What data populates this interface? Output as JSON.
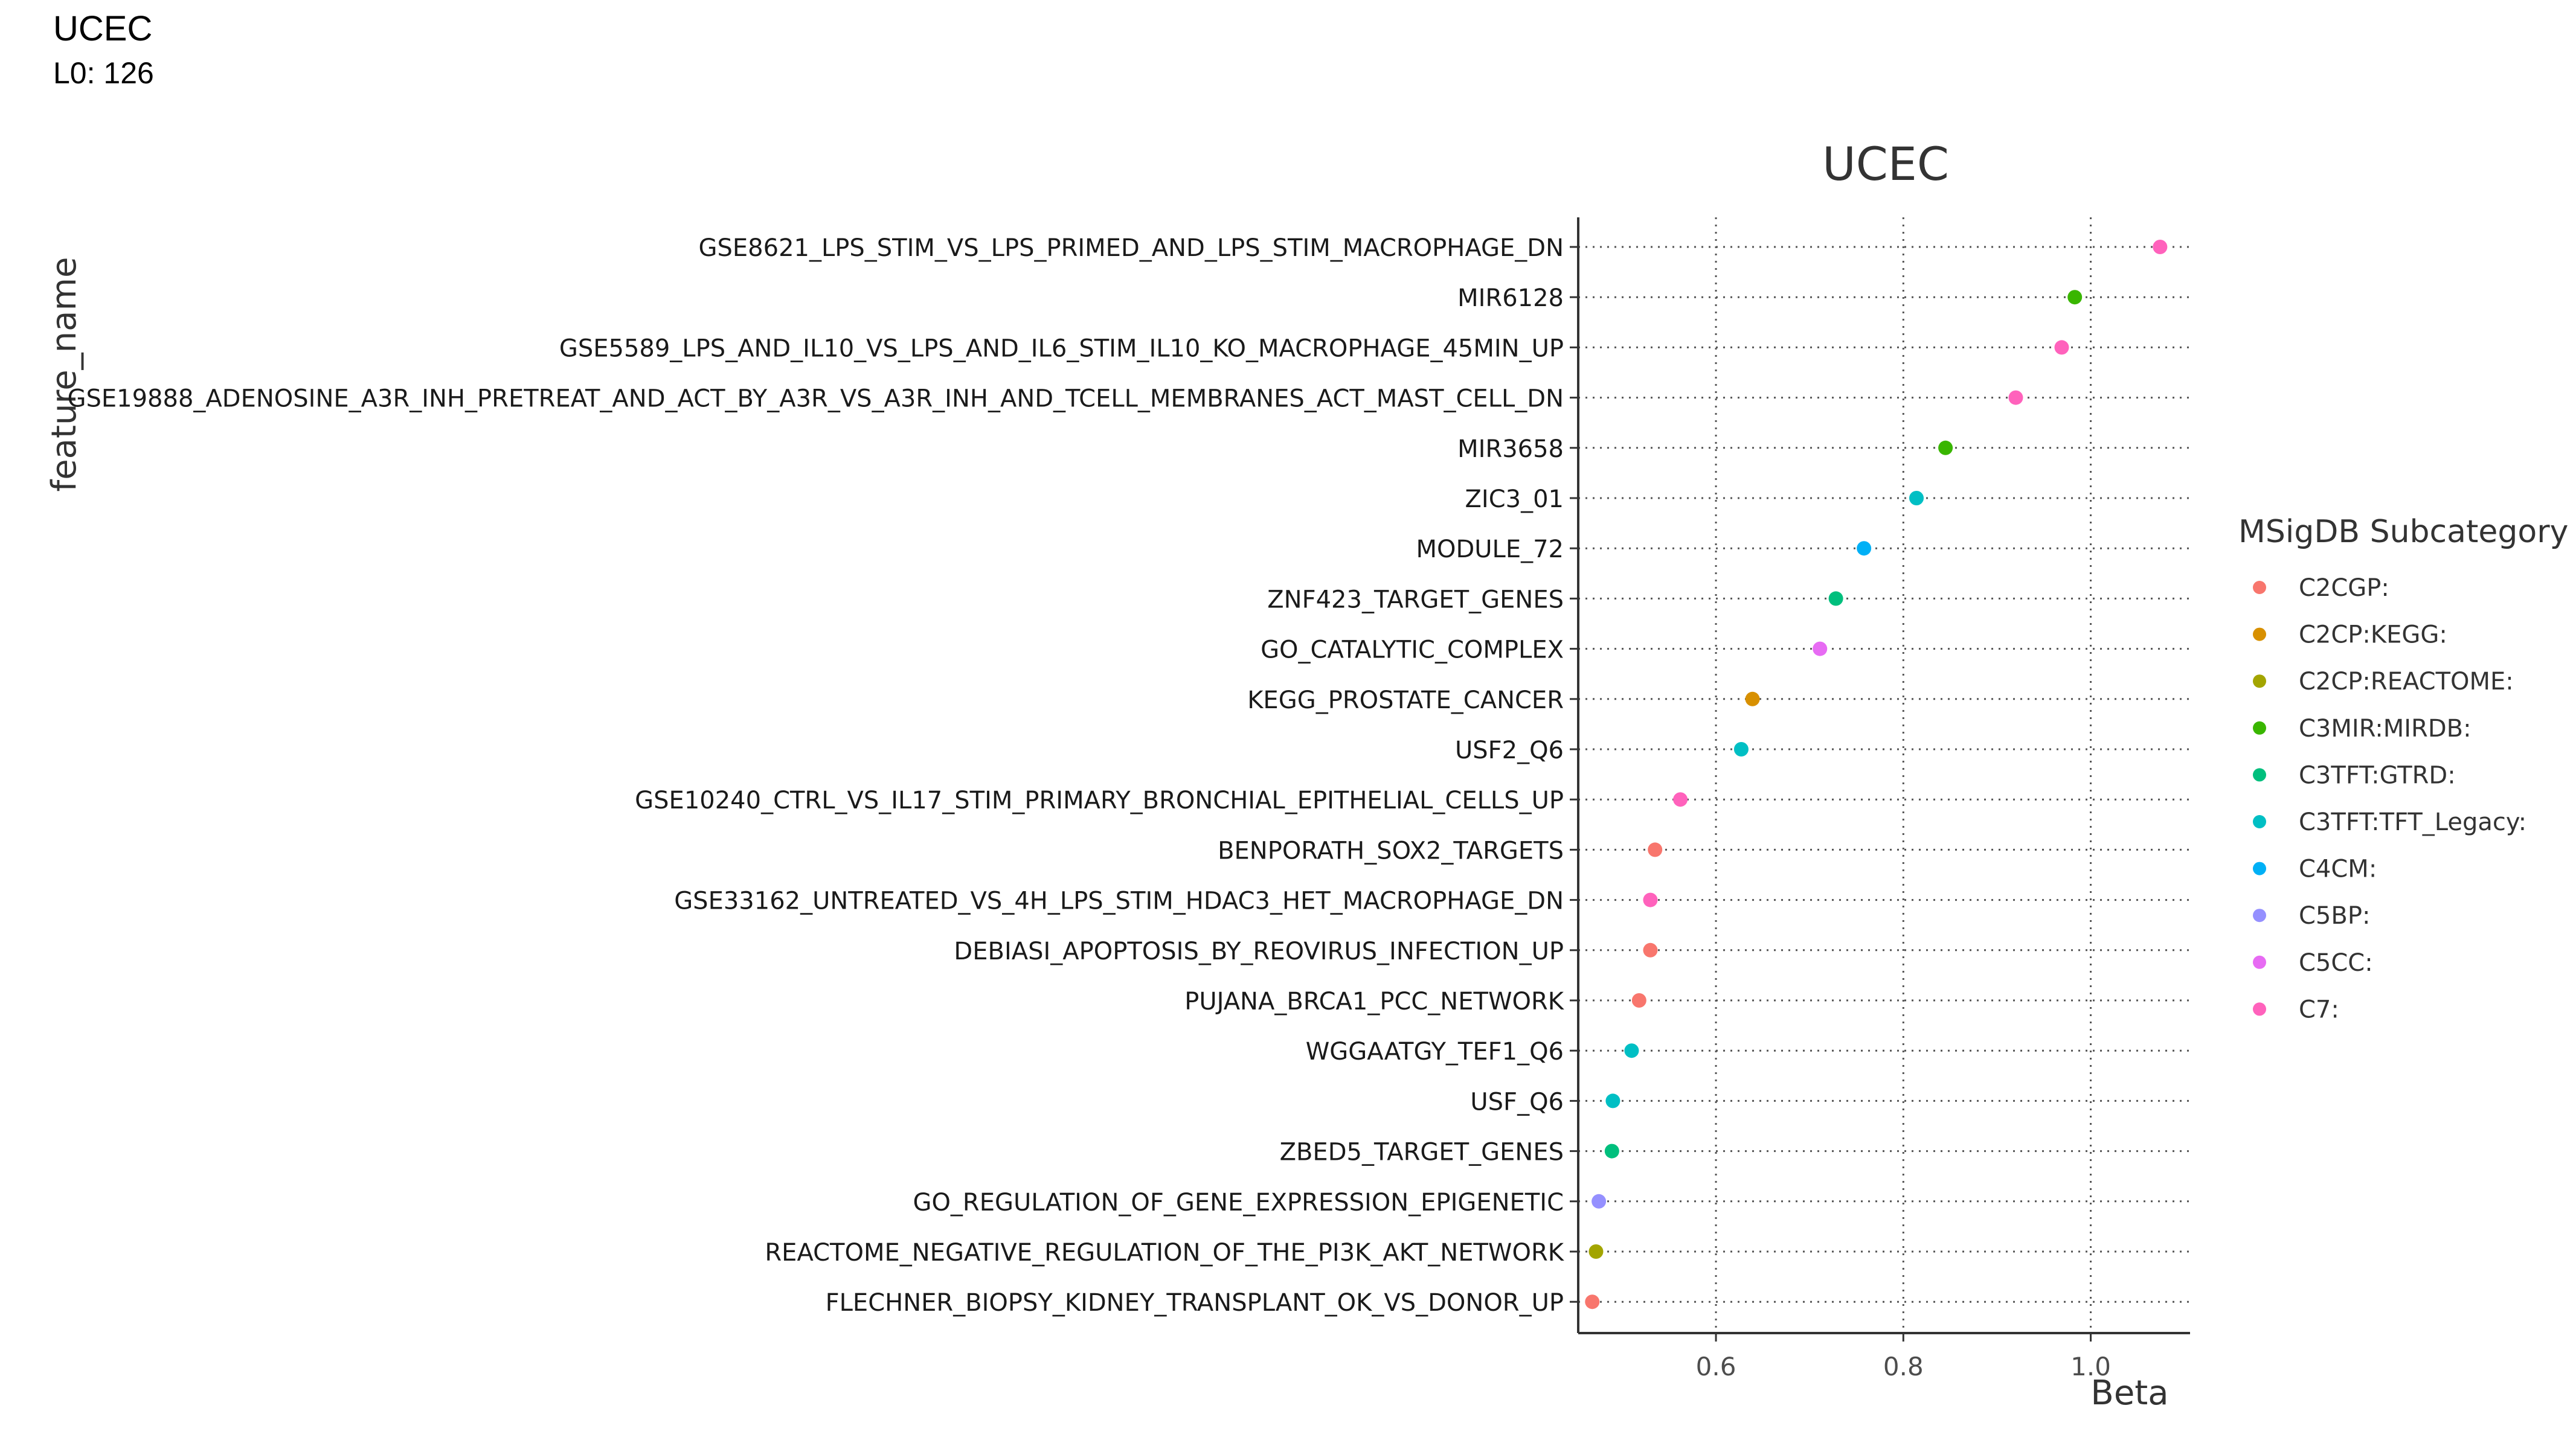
{
  "header": {
    "title": "UCEC",
    "subtitle": "L0: 126"
  },
  "chart_data": {
    "type": "scatter",
    "title": "UCEC",
    "xlabel": "Beta",
    "ylabel": "feature_name",
    "xlim": [
      0.453,
      1.106
    ],
    "xticks": [
      {
        "value": 0.6,
        "label": "0.6"
      },
      {
        "value": 0.8,
        "label": "0.8"
      },
      {
        "value": 1.0,
        "label": "1.0"
      }
    ],
    "grid": "dotted",
    "legend": {
      "title": "MSigDB Subcategory",
      "position": "right",
      "items": [
        {
          "label": "C2CGP:",
          "color": "#F8766D"
        },
        {
          "label": "C2CP:KEGG:",
          "color": "#D89000"
        },
        {
          "label": "C2CP:REACTOME:",
          "color": "#A3A500"
        },
        {
          "label": "C3MIR:MIRDB:",
          "color": "#39B600"
        },
        {
          "label": "C3TFT:GTRD:",
          "color": "#00BF7D"
        },
        {
          "label": "C3TFT:TFT_Legacy:",
          "color": "#00BFC4"
        },
        {
          "label": "C4CM:",
          "color": "#00B0F6"
        },
        {
          "label": "C5BP:",
          "color": "#9590FF"
        },
        {
          "label": "C5CC:",
          "color": "#E76BF3"
        },
        {
          "label": "C7:",
          "color": "#FF62BC"
        }
      ]
    },
    "points": [
      {
        "feature": "GSE8621_LPS_STIM_VS_LPS_PRIMED_AND_LPS_STIM_MACROPHAGE_DN",
        "beta": 1.074,
        "category": "C7:"
      },
      {
        "feature": "MIR6128",
        "beta": 0.983,
        "category": "C3MIR:MIRDB:"
      },
      {
        "feature": "GSE5589_LPS_AND_IL10_VS_LPS_AND_IL6_STIM_IL10_KO_MACROPHAGE_45MIN_UP",
        "beta": 0.969,
        "category": "C7:"
      },
      {
        "feature": "GSE19888_ADENOSINE_A3R_INH_PRETREAT_AND_ACT_BY_A3R_VS_A3R_INH_AND_TCELL_MEMBRANES_ACT_MAST_CELL_DN",
        "beta": 0.92,
        "category": "C7:"
      },
      {
        "feature": "MIR3658",
        "beta": 0.845,
        "category": "C3MIR:MIRDB:"
      },
      {
        "feature": "ZIC3_01",
        "beta": 0.814,
        "category": "C3TFT:TFT_Legacy:"
      },
      {
        "feature": "MODULE_72",
        "beta": 0.758,
        "category": "C4CM:"
      },
      {
        "feature": "ZNF423_TARGET_GENES",
        "beta": 0.728,
        "category": "C3TFT:GTRD:"
      },
      {
        "feature": "GO_CATALYTIC_COMPLEX",
        "beta": 0.711,
        "category": "C5CC:"
      },
      {
        "feature": "KEGG_PROSTATE_CANCER",
        "beta": 0.639,
        "category": "C2CP:KEGG:"
      },
      {
        "feature": "USF2_Q6",
        "beta": 0.627,
        "category": "C3TFT:TFT_Legacy:"
      },
      {
        "feature": "GSE10240_CTRL_VS_IL17_STIM_PRIMARY_BRONCHIAL_EPITHELIAL_CELLS_UP",
        "beta": 0.562,
        "category": "C7:"
      },
      {
        "feature": "BENPORATH_SOX2_TARGETS",
        "beta": 0.535,
        "category": "C2CGP:"
      },
      {
        "feature": "GSE33162_UNTREATED_VS_4H_LPS_STIM_HDAC3_HET_MACROPHAGE_DN",
        "beta": 0.53,
        "category": "C7:"
      },
      {
        "feature": "DEBIASI_APOPTOSIS_BY_REOVIRUS_INFECTION_UP",
        "beta": 0.53,
        "category": "C2CGP:"
      },
      {
        "feature": "PUJANA_BRCA1_PCC_NETWORK",
        "beta": 0.518,
        "category": "C2CGP:"
      },
      {
        "feature": "WGGAATGY_TEF1_Q6",
        "beta": 0.51,
        "category": "C3TFT:TFT_Legacy:"
      },
      {
        "feature": "USF_Q6",
        "beta": 0.49,
        "category": "C3TFT:TFT_Legacy:"
      },
      {
        "feature": "ZBED5_TARGET_GENES",
        "beta": 0.489,
        "category": "C3TFT:GTRD:"
      },
      {
        "feature": "GO_REGULATION_OF_GENE_EXPRESSION_EPIGENETIC",
        "beta": 0.475,
        "category": "C5BP:"
      },
      {
        "feature": "REACTOME_NEGATIVE_REGULATION_OF_THE_PI3K_AKT_NETWORK",
        "beta": 0.472,
        "category": "C2CP:REACTOME:"
      },
      {
        "feature": "FLECHNER_BIOPSY_KIDNEY_TRANSPLANT_OK_VS_DONOR_UP",
        "beta": 0.468,
        "category": "C2CGP:"
      }
    ]
  }
}
